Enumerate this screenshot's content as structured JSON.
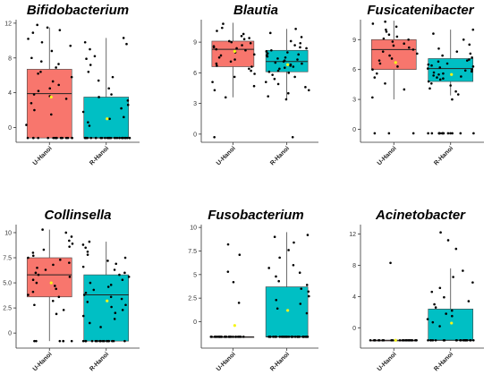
{
  "chart_data": [
    {
      "type": "box",
      "title": "Bifidobacterium",
      "categories": [
        "U-Hanoi",
        "R-Hanoi"
      ],
      "colors": [
        "#F8766D",
        "#00BFC4"
      ],
      "ylim": [
        -1.7,
        12.4
      ],
      "yticks": [
        0,
        4,
        8,
        12
      ],
      "boxes": [
        {
          "group": "U-Hanoi",
          "q1": -1.2,
          "median": 3.9,
          "q3": 6.7,
          "whisker_low": -1.2,
          "whisker_high": 11.5,
          "mean": 3.5
        },
        {
          "group": "R-Hanoi",
          "q1": -1.2,
          "median": -1.2,
          "q3": 3.5,
          "whisker_low": -1.2,
          "whisker_high": 10.3,
          "mean": 1.0
        }
      ],
      "points": [
        {
          "group": "U-Hanoi",
          "values": [
            11.8,
            11.5,
            11.2,
            10.9,
            10.2,
            9.8,
            9.4,
            8.8,
            8.0,
            7.6,
            7.3,
            6.9,
            6.4,
            6.2,
            5.8,
            5.3,
            4.9,
            4.5,
            4.2,
            3.8,
            3.6,
            3.3,
            2.8,
            2.0,
            1.5,
            0.3,
            -1.2,
            -1.2,
            -1.2,
            -1.2,
            -1.2,
            -1.2,
            -1.2,
            -1.2,
            -1.2,
            -1.2,
            -1.2,
            -1.2,
            -1.2,
            -1.2,
            -1.2,
            -1.2
          ]
        },
        {
          "group": "R-Hanoi",
          "values": [
            10.3,
            9.8,
            9.6,
            9.0,
            8.2,
            7.9,
            7.2,
            6.4,
            5.8,
            5.4,
            4.5,
            3.8,
            3.5,
            3.1,
            2.6,
            2.2,
            1.8,
            1.2,
            1.0,
            0.6,
            0.2,
            -1.2,
            -1.2,
            -1.2,
            -1.2,
            -1.2,
            -1.2,
            -1.2,
            -1.2,
            -1.2,
            -1.2,
            -1.2,
            -1.2,
            -1.2,
            -1.2,
            -1.2,
            -1.2,
            -1.2,
            -1.2,
            -1.2,
            -1.2,
            -1.2,
            -1.2,
            -1.2,
            -1.2,
            -1.2,
            -1.2,
            -1.2
          ]
        }
      ]
    },
    {
      "type": "box",
      "title": "Blautia",
      "categories": [
        "U-Hanoi",
        "R-Hanoi"
      ],
      "colors": [
        "#F8766D",
        "#00BFC4"
      ],
      "ylim": [
        -0.8,
        11.2
      ],
      "yticks": [
        0,
        3,
        6,
        9
      ],
      "boxes": [
        {
          "group": "U-Hanoi",
          "q1": 6.6,
          "median": 8.3,
          "q3": 9.1,
          "whisker_low": 3.6,
          "whisker_high": 10.9,
          "mean": 8.1
        },
        {
          "group": "R-Hanoi",
          "q1": 6.1,
          "median": 7.1,
          "q3": 8.2,
          "whisker_low": 3.4,
          "whisker_high": 10.3,
          "mean": 6.8
        }
      ],
      "points": [
        {
          "group": "U-Hanoi",
          "values": [
            10.8,
            10.4,
            10.1,
            9.8,
            9.6,
            9.4,
            9.3,
            9.1,
            9.0,
            8.9,
            8.7,
            8.6,
            8.5,
            8.4,
            8.3,
            8.2,
            8.0,
            7.8,
            7.7,
            7.5,
            7.3,
            7.1,
            6.9,
            6.7,
            6.6,
            6.4,
            6.2,
            5.9,
            5.6,
            5.1,
            4.7,
            4.3,
            3.6,
            -0.3
          ]
        },
        {
          "group": "R-Hanoi",
          "values": [
            10.3,
            9.9,
            9.5,
            9.1,
            8.9,
            8.7,
            8.5,
            8.4,
            8.2,
            8.1,
            8.0,
            7.9,
            7.8,
            7.7,
            7.6,
            7.5,
            7.4,
            7.3,
            7.2,
            7.1,
            7.0,
            6.9,
            6.8,
            6.7,
            6.6,
            6.5,
            6.4,
            6.2,
            6.1,
            6.0,
            5.8,
            5.6,
            5.4,
            5.1,
            4.9,
            4.6,
            4.3,
            4.0,
            3.7,
            3.4,
            -0.3
          ]
        }
      ]
    },
    {
      "type": "box",
      "title": "Fusicatenibacter",
      "categories": [
        "U-Hanoi",
        "R-Hanoi"
      ],
      "colors": [
        "#F8766D",
        "#00BFC4"
      ],
      "ylim": [
        -1.3,
        11.0
      ],
      "yticks": [
        0,
        3,
        6,
        9
      ],
      "boxes": [
        {
          "group": "U-Hanoi",
          "q1": 6.0,
          "median": 8.0,
          "q3": 9.0,
          "whisker_low": 3.0,
          "whisker_high": 10.9,
          "mean": 6.7
        },
        {
          "group": "R-Hanoi",
          "q1": 4.8,
          "median": 6.1,
          "q3": 7.1,
          "whisker_low": 3.4,
          "whisker_high": 10.0,
          "mean": 5.5
        }
      ],
      "points": [
        {
          "group": "U-Hanoi",
          "values": [
            10.8,
            10.6,
            10.3,
            10.0,
            9.8,
            9.5,
            9.3,
            9.1,
            9.0,
            8.8,
            8.6,
            8.4,
            8.2,
            8.0,
            7.8,
            7.6,
            7.4,
            7.1,
            6.9,
            6.6,
            6.3,
            6.0,
            5.6,
            5.2,
            4.6,
            4.0,
            3.2,
            -0.4,
            -0.4,
            -0.4
          ]
        },
        {
          "group": "R-Hanoi",
          "values": [
            10.0,
            9.6,
            9.0,
            8.5,
            8.1,
            7.8,
            7.6,
            7.4,
            7.2,
            7.0,
            6.9,
            6.8,
            6.6,
            6.5,
            6.4,
            6.3,
            6.2,
            6.1,
            6.0,
            5.9,
            5.8,
            5.7,
            5.6,
            5.5,
            5.4,
            5.3,
            5.2,
            5.1,
            5.0,
            4.8,
            4.6,
            4.4,
            4.1,
            3.8,
            3.5,
            3.0,
            -0.4,
            -0.4,
            -0.4,
            -0.4,
            -0.4,
            -0.4,
            -0.4,
            -0.4,
            -0.4,
            -0.4,
            -0.4,
            -0.4,
            -0.4
          ]
        }
      ]
    },
    {
      "type": "box",
      "title": "Collinsella",
      "categories": [
        "U-Hanoi",
        "R-Hanoi"
      ],
      "colors": [
        "#F8766D",
        "#00BFC4"
      ],
      "ylim": [
        -1.5,
        10.8
      ],
      "yticks": [
        0,
        2.5,
        5.0,
        7.5,
        10
      ],
      "ytick_labels": [
        "0",
        "2.5",
        "5.0",
        "7.5",
        "10"
      ],
      "boxes": [
        {
          "group": "U-Hanoi",
          "q1": 3.6,
          "median": 5.8,
          "q3": 7.5,
          "whisker_low": -0.8,
          "whisker_high": 10.3,
          "mean": 5.0
        },
        {
          "group": "R-Hanoi",
          "q1": -0.8,
          "median": 3.8,
          "q3": 5.8,
          "whisker_low": -0.8,
          "whisker_high": 9.1,
          "mean": 3.2
        }
      ],
      "points": [
        {
          "group": "U-Hanoi",
          "values": [
            10.3,
            10.0,
            9.6,
            9.2,
            8.9,
            8.6,
            8.3,
            8.0,
            7.7,
            7.5,
            7.3,
            7.0,
            6.8,
            6.5,
            6.3,
            6.0,
            5.8,
            5.6,
            5.3,
            5.0,
            4.7,
            4.4,
            4.1,
            3.8,
            3.6,
            3.2,
            2.8,
            2.3,
            1.9,
            -0.8,
            -0.8,
            -0.8,
            -0.8,
            -0.8,
            -0.8
          ]
        },
        {
          "group": "R-Hanoi",
          "values": [
            9.1,
            8.8,
            8.5,
            8.1,
            7.8,
            7.5,
            7.2,
            6.9,
            6.6,
            6.3,
            6.0,
            5.8,
            5.6,
            5.3,
            5.0,
            4.8,
            4.6,
            4.3,
            4.0,
            3.8,
            3.6,
            3.4,
            3.1,
            2.8,
            2.6,
            2.3,
            2.0,
            1.7,
            1.4,
            1.0,
            0.6,
            -0.8,
            -0.8,
            -0.8,
            -0.8,
            -0.8,
            -0.8,
            -0.8,
            -0.8,
            -0.8,
            -0.8,
            -0.8,
            -0.8,
            -0.8,
            -0.8,
            -0.8,
            -0.8,
            -0.8
          ]
        }
      ]
    },
    {
      "type": "box",
      "title": "Fusobacterium",
      "categories": [
        "U-Hanoi",
        "R-Hanoi"
      ],
      "colors": [
        "#F8766D",
        "#00BFC4"
      ],
      "ylim": [
        -2.8,
        10.3
      ],
      "yticks": [
        0,
        2.5,
        5,
        7.5,
        10
      ],
      "ytick_labels": [
        "0",
        "2.5",
        "5",
        "7.5",
        "10"
      ],
      "boxes": [
        {
          "group": "U-Hanoi",
          "q1": -1.6,
          "median": -1.6,
          "q3": -1.6,
          "whisker_low": -1.6,
          "whisker_high": -1.6,
          "mean": -0.4
        },
        {
          "group": "R-Hanoi",
          "q1": -1.6,
          "median": -1.6,
          "q3": 3.7,
          "whisker_low": -1.6,
          "whisker_high": 9.5,
          "mean": 1.2
        }
      ],
      "points": [
        {
          "group": "U-Hanoi",
          "values": [
            8.2,
            7.1,
            5.3,
            4.2,
            2.0,
            -1.6,
            -1.6,
            -1.6,
            -1.6,
            -1.6,
            -1.6,
            -1.6,
            -1.6,
            -1.6,
            -1.6,
            -1.6,
            -1.6,
            -1.6,
            -1.6,
            -1.6,
            -1.6,
            -1.6,
            -1.6,
            -1.6,
            -1.6,
            -1.6,
            -1.6,
            -1.6,
            -1.6,
            -1.6
          ]
        },
        {
          "group": "R-Hanoi",
          "values": [
            9.2,
            9.0,
            8.4,
            7.6,
            6.8,
            6.0,
            5.7,
            5.2,
            4.8,
            4.3,
            3.9,
            3.5,
            3.2,
            2.7,
            2.3,
            1.9,
            1.4,
            0.9,
            -1.6,
            -1.6,
            -1.6,
            -1.6,
            -1.6,
            -1.6,
            -1.6,
            -1.6,
            -1.6,
            -1.6,
            -1.6,
            -1.6,
            -1.6,
            -1.6,
            -1.6,
            -1.6,
            -1.6,
            -1.6,
            -1.6,
            -1.6,
            -1.6,
            -1.6,
            -1.6,
            -1.6,
            -1.6,
            -1.6,
            -1.6
          ]
        }
      ]
    },
    {
      "type": "box",
      "title": "Acinetobacter",
      "categories": [
        "U-Hanoi",
        "R-Hanoi"
      ],
      "colors": [
        "#F8766D",
        "#00BFC4"
      ],
      "ylim": [
        -2.6,
        13.2
      ],
      "yticks": [
        0,
        4,
        8,
        12
      ],
      "boxes": [
        {
          "group": "U-Hanoi",
          "q1": -1.6,
          "median": -1.6,
          "q3": -1.6,
          "whisker_low": -1.6,
          "whisker_high": -1.6,
          "mean": -1.6
        },
        {
          "group": "R-Hanoi",
          "q1": -1.6,
          "median": -1.6,
          "q3": 2.4,
          "whisker_low": -1.6,
          "whisker_high": 7.6,
          "mean": 0.6
        }
      ],
      "points": [
        {
          "group": "U-Hanoi",
          "values": [
            8.3,
            -1.6,
            -1.6,
            -1.6,
            -1.6,
            -1.6,
            -1.6,
            -1.6,
            -1.6,
            -1.6,
            -1.6,
            -1.6,
            -1.6,
            -1.6,
            -1.6,
            -1.6,
            -1.6,
            -1.6,
            -1.6,
            -1.6,
            -1.6,
            -1.6,
            -1.6,
            -1.6,
            -1.6
          ]
        },
        {
          "group": "R-Hanoi",
          "values": [
            12.2,
            11.2,
            10.1,
            7.3,
            6.5,
            5.8,
            5.1,
            4.6,
            3.9,
            3.4,
            3.0,
            2.6,
            2.2,
            1.8,
            1.5,
            1.1,
            0.7,
            0.2,
            -1.6,
            -1.6,
            -1.6,
            -1.6,
            -1.6,
            -1.6,
            -1.6,
            -1.6,
            -1.6,
            -1.6,
            -1.6,
            -1.6,
            -1.6,
            -1.6,
            -1.6,
            -1.6,
            -1.6,
            -1.6,
            -1.6,
            -1.6,
            -1.6,
            -1.6,
            -1.6
          ]
        }
      ]
    }
  ]
}
